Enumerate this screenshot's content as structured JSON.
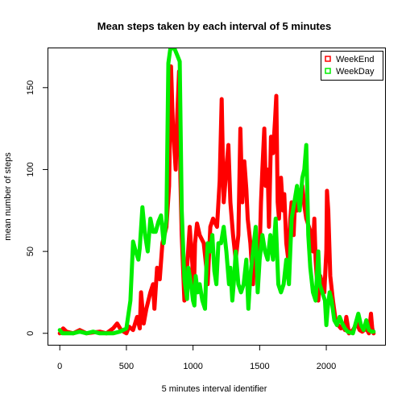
{
  "chart_data": {
    "type": "line",
    "title": "Mean steps taken by each interval of 5 minutes",
    "xlabel": "5 minutes interval identifier",
    "ylabel": "mean number of steps",
    "xlim": [
      -86,
      2441
    ],
    "ylim": [
      -7,
      174
    ],
    "x_ticks": [
      0,
      500,
      1000,
      1500,
      2000
    ],
    "y_ticks": [
      0,
      50,
      100,
      150
    ],
    "grid": false,
    "legend_position": "top-right",
    "series": [
      {
        "name": "WeekEnd",
        "color": "#ff0000",
        "points": [
          [
            0,
            0
          ],
          [
            25,
            3
          ],
          [
            50,
            1
          ],
          [
            100,
            0
          ],
          [
            150,
            2
          ],
          [
            200,
            0
          ],
          [
            300,
            1
          ],
          [
            350,
            0
          ],
          [
            400,
            3
          ],
          [
            430,
            6
          ],
          [
            460,
            2
          ],
          [
            500,
            0
          ],
          [
            520,
            4
          ],
          [
            550,
            2
          ],
          [
            580,
            10
          ],
          [
            600,
            3
          ],
          [
            610,
            25
          ],
          [
            630,
            6
          ],
          [
            650,
            15
          ],
          [
            680,
            25
          ],
          [
            700,
            30
          ],
          [
            710,
            15
          ],
          [
            730,
            40
          ],
          [
            750,
            33
          ],
          [
            770,
            55
          ],
          [
            800,
            65
          ],
          [
            820,
            90
          ],
          [
            835,
            163
          ],
          [
            850,
            125
          ],
          [
            870,
            100
          ],
          [
            880,
            130
          ],
          [
            895,
            160
          ],
          [
            905,
            95
          ],
          [
            915,
            60
          ],
          [
            935,
            20
          ],
          [
            955,
            40
          ],
          [
            975,
            65
          ],
          [
            995,
            42
          ],
          [
            1005,
            20
          ],
          [
            1015,
            55
          ],
          [
            1030,
            67
          ],
          [
            1050,
            60
          ],
          [
            1080,
            55
          ],
          [
            1100,
            40
          ],
          [
            1110,
            30
          ],
          [
            1130,
            65
          ],
          [
            1150,
            70
          ],
          [
            1180,
            65
          ],
          [
            1200,
            93
          ],
          [
            1215,
            143
          ],
          [
            1230,
            80
          ],
          [
            1250,
            100
          ],
          [
            1265,
            115
          ],
          [
            1280,
            80
          ],
          [
            1300,
            60
          ],
          [
            1320,
            45
          ],
          [
            1340,
            60
          ],
          [
            1355,
            125
          ],
          [
            1370,
            80
          ],
          [
            1385,
            105
          ],
          [
            1400,
            88
          ],
          [
            1410,
            70
          ],
          [
            1430,
            55
          ],
          [
            1450,
            30
          ],
          [
            1460,
            50
          ],
          [
            1480,
            35
          ],
          [
            1500,
            50
          ],
          [
            1510,
            80
          ],
          [
            1520,
            100
          ],
          [
            1535,
            125
          ],
          [
            1545,
            90
          ],
          [
            1560,
            100
          ],
          [
            1570,
            65
          ],
          [
            1585,
            120
          ],
          [
            1600,
            110
          ],
          [
            1615,
            130
          ],
          [
            1625,
            145
          ],
          [
            1635,
            80
          ],
          [
            1645,
            70
          ],
          [
            1660,
            95
          ],
          [
            1675,
            75
          ],
          [
            1685,
            85
          ],
          [
            1700,
            55
          ],
          [
            1715,
            45
          ],
          [
            1730,
            70
          ],
          [
            1740,
            80
          ],
          [
            1755,
            60
          ],
          [
            1765,
            80
          ],
          [
            1780,
            75
          ],
          [
            1800,
            85
          ],
          [
            1820,
            90
          ],
          [
            1835,
            78
          ],
          [
            1850,
            70
          ],
          [
            1870,
            65
          ],
          [
            1890,
            60
          ],
          [
            1900,
            50
          ],
          [
            1910,
            70
          ],
          [
            1920,
            45
          ],
          [
            1940,
            20
          ],
          [
            1955,
            35
          ],
          [
            1970,
            30
          ],
          [
            1985,
            25
          ],
          [
            2000,
            50
          ],
          [
            2005,
            87
          ],
          [
            2015,
            75
          ],
          [
            2030,
            35
          ],
          [
            2050,
            20
          ],
          [
            2070,
            8
          ],
          [
            2090,
            5
          ],
          [
            2110,
            3
          ],
          [
            2120,
            5
          ],
          [
            2140,
            2
          ],
          [
            2150,
            10
          ],
          [
            2170,
            0
          ],
          [
            2200,
            2
          ],
          [
            2230,
            6
          ],
          [
            2250,
            2
          ],
          [
            2270,
            1
          ],
          [
            2300,
            3
          ],
          [
            2320,
            0
          ],
          [
            2335,
            12
          ],
          [
            2345,
            3
          ],
          [
            2355,
            0
          ]
        ]
      },
      {
        "name": "WeekDay",
        "color": "#00ee00",
        "points": [
          [
            0,
            2
          ],
          [
            20,
            0
          ],
          [
            50,
            0
          ],
          [
            100,
            0
          ],
          [
            150,
            1
          ],
          [
            200,
            0
          ],
          [
            250,
            1
          ],
          [
            300,
            0
          ],
          [
            400,
            0
          ],
          [
            450,
            1
          ],
          [
            500,
            3
          ],
          [
            530,
            20
          ],
          [
            550,
            56
          ],
          [
            570,
            50
          ],
          [
            590,
            45
          ],
          [
            600,
            52
          ],
          [
            620,
            77
          ],
          [
            640,
            60
          ],
          [
            660,
            50
          ],
          [
            680,
            70
          ],
          [
            700,
            62
          ],
          [
            720,
            62
          ],
          [
            740,
            68
          ],
          [
            760,
            72
          ],
          [
            780,
            55
          ],
          [
            800,
            70
          ],
          [
            815,
            165
          ],
          [
            830,
            174
          ],
          [
            845,
            174
          ],
          [
            860,
            174
          ],
          [
            880,
            170
          ],
          [
            900,
            166
          ],
          [
            915,
            75
          ],
          [
            935,
            33
          ],
          [
            955,
            21
          ],
          [
            965,
            40
          ],
          [
            985,
            30
          ],
          [
            1000,
            20
          ],
          [
            1010,
            17
          ],
          [
            1020,
            35
          ],
          [
            1035,
            25
          ],
          [
            1050,
            30
          ],
          [
            1070,
            20
          ],
          [
            1090,
            15
          ],
          [
            1100,
            40
          ],
          [
            1110,
            55
          ],
          [
            1130,
            50
          ],
          [
            1145,
            60
          ],
          [
            1160,
            38
          ],
          [
            1175,
            30
          ],
          [
            1190,
            55
          ],
          [
            1210,
            55
          ],
          [
            1230,
            65
          ],
          [
            1250,
            50
          ],
          [
            1270,
            30
          ],
          [
            1280,
            40
          ],
          [
            1295,
            20
          ],
          [
            1310,
            35
          ],
          [
            1320,
            50
          ],
          [
            1340,
            30
          ],
          [
            1360,
            25
          ],
          [
            1380,
            30
          ],
          [
            1400,
            45
          ],
          [
            1415,
            15
          ],
          [
            1430,
            35
          ],
          [
            1450,
            50
          ],
          [
            1470,
            65
          ],
          [
            1485,
            25
          ],
          [
            1500,
            45
          ],
          [
            1520,
            60
          ],
          [
            1540,
            50
          ],
          [
            1560,
            45
          ],
          [
            1580,
            60
          ],
          [
            1600,
            45
          ],
          [
            1620,
            70
          ],
          [
            1640,
            30
          ],
          [
            1660,
            25
          ],
          [
            1680,
            30
          ],
          [
            1700,
            45
          ],
          [
            1720,
            30
          ],
          [
            1740,
            70
          ],
          [
            1760,
            80
          ],
          [
            1780,
            90
          ],
          [
            1800,
            75
          ],
          [
            1820,
            95
          ],
          [
            1835,
            100
          ],
          [
            1850,
            115
          ],
          [
            1865,
            60
          ],
          [
            1880,
            40
          ],
          [
            1900,
            25
          ],
          [
            1920,
            20
          ],
          [
            1940,
            50
          ],
          [
            1950,
            30
          ],
          [
            1970,
            25
          ],
          [
            1990,
            20
          ],
          [
            2000,
            5
          ],
          [
            2010,
            15
          ],
          [
            2025,
            25
          ],
          [
            2040,
            20
          ],
          [
            2060,
            8
          ],
          [
            2080,
            5
          ],
          [
            2100,
            10
          ],
          [
            2120,
            6
          ],
          [
            2140,
            3
          ],
          [
            2160,
            1
          ],
          [
            2200,
            0
          ],
          [
            2220,
            6
          ],
          [
            2240,
            12
          ],
          [
            2260,
            5
          ],
          [
            2280,
            2
          ],
          [
            2300,
            8
          ],
          [
            2320,
            2
          ],
          [
            2340,
            1
          ],
          [
            2355,
            1
          ]
        ]
      }
    ]
  }
}
